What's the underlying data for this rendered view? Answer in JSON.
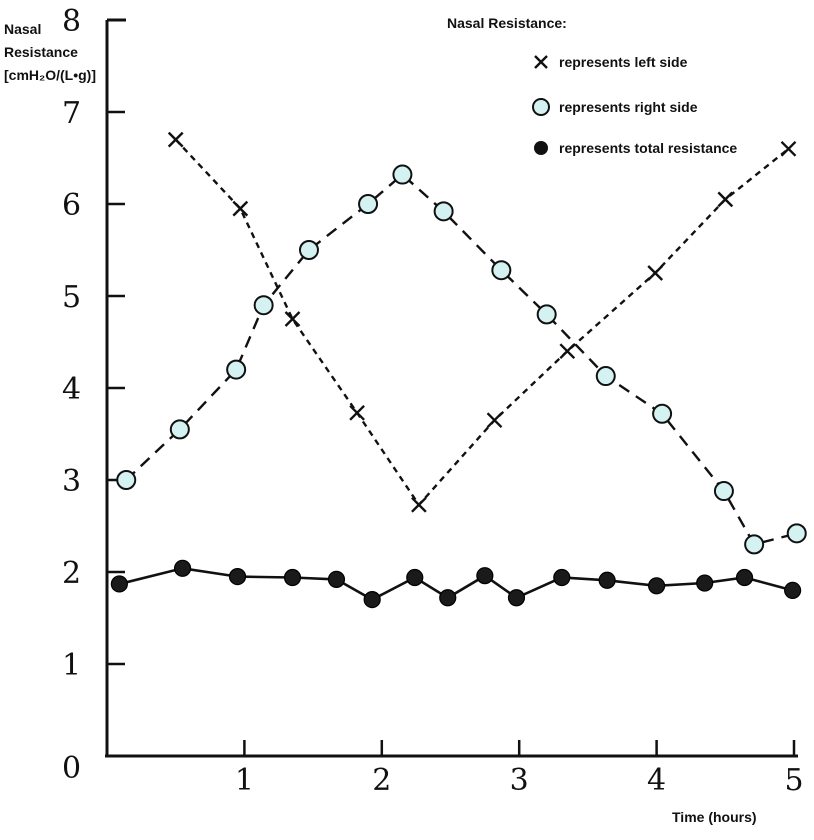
{
  "chart_data": {
    "type": "line",
    "title": "",
    "ylabel_lines": [
      "Nasal",
      "Resistance",
      "[cmH₂O/(L•g)]"
    ],
    "xlabel": "Time (hours)",
    "xlim": [
      0,
      5
    ],
    "ylim": [
      0,
      8
    ],
    "x_ticks": [
      1,
      2,
      3,
      4,
      5
    ],
    "y_ticks": [
      1,
      2,
      3,
      4,
      5,
      6,
      7,
      8
    ],
    "origin_label": "0",
    "grid": false,
    "legend": {
      "title": "Nasal Resistance:",
      "position": "top-right",
      "entries": [
        {
          "marker": "x",
          "label": "represents left side"
        },
        {
          "marker": "open-circle",
          "label": "represents right side"
        },
        {
          "marker": "filled-circle",
          "label": "represents total resistance"
        }
      ]
    },
    "series": [
      {
        "key": "left",
        "marker": "x",
        "line": "dashed",
        "color": "#111111",
        "points": [
          [
            0.5,
            6.7
          ],
          [
            0.97,
            5.95
          ],
          [
            1.35,
            4.75
          ],
          [
            1.82,
            3.73
          ],
          [
            2.27,
            2.73
          ],
          [
            2.82,
            3.65
          ],
          [
            3.35,
            4.4
          ],
          [
            3.99,
            5.25
          ],
          [
            4.5,
            6.05
          ],
          [
            4.96,
            6.6
          ]
        ]
      },
      {
        "key": "right",
        "marker": "open-circle",
        "line": "dashed",
        "color": "#111111",
        "fill": "#d4f2f2",
        "points": [
          [
            0.14,
            3.0
          ],
          [
            0.53,
            3.55
          ],
          [
            0.94,
            4.2
          ],
          [
            1.14,
            4.9
          ],
          [
            1.47,
            5.5
          ],
          [
            1.9,
            6.0
          ],
          [
            2.15,
            6.32
          ],
          [
            2.45,
            5.92
          ],
          [
            2.87,
            5.28
          ],
          [
            3.2,
            4.8
          ],
          [
            3.63,
            4.13
          ],
          [
            4.04,
            3.72
          ],
          [
            4.49,
            2.88
          ],
          [
            4.71,
            2.3
          ],
          [
            5.02,
            2.42
          ]
        ]
      },
      {
        "key": "total",
        "marker": "filled-circle",
        "line": "solid",
        "color": "#111111",
        "points": [
          [
            0.09,
            1.87
          ],
          [
            0.55,
            2.04
          ],
          [
            0.95,
            1.95
          ],
          [
            1.35,
            1.94
          ],
          [
            1.67,
            1.92
          ],
          [
            1.93,
            1.7
          ],
          [
            2.24,
            1.94
          ],
          [
            2.48,
            1.72
          ],
          [
            2.75,
            1.96
          ],
          [
            2.98,
            1.72
          ],
          [
            3.31,
            1.94
          ],
          [
            3.64,
            1.91
          ],
          [
            4.0,
            1.85
          ],
          [
            4.35,
            1.88
          ],
          [
            4.64,
            1.94
          ],
          [
            4.99,
            1.8
          ]
        ]
      }
    ]
  }
}
